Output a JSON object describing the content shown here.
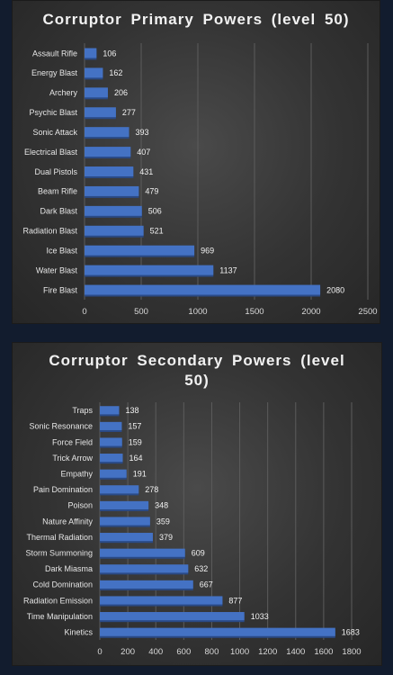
{
  "chart_data": [
    {
      "type": "bar",
      "orientation": "horizontal",
      "title": "Corruptor Primary Powers (level 50)",
      "categories": [
        "Assault Rifle",
        "Energy Blast",
        "Archery",
        "Psychic Blast",
        "Sonic Attack",
        "Electrical Blast",
        "Dual Pistols",
        "Beam Rifle",
        "Dark Blast",
        "Radiation Blast",
        "Ice Blast",
        "Water Blast",
        "Fire Blast"
      ],
      "values": [
        106,
        162,
        206,
        277,
        393,
        407,
        431,
        479,
        506,
        521,
        969,
        1137,
        2080
      ],
      "xlim": [
        0,
        2500
      ],
      "xticks": [
        0,
        500,
        1000,
        1500,
        2000,
        2500
      ],
      "grid": true,
      "bar_color": "#4472c4"
    },
    {
      "type": "bar",
      "orientation": "horizontal",
      "title": "Corruptor Secondary Powers (level 50)",
      "categories": [
        "Traps",
        "Sonic Resonance",
        "Force Field",
        "Trick Arrow",
        "Empathy",
        "Pain Domination",
        "Poison",
        "Nature Affinity",
        "Thermal Radiation",
        "Storm Summoning",
        "Dark Miasma",
        "Cold Domination",
        "Radiation Emission",
        "Time Manipulation",
        "Kinetics"
      ],
      "values": [
        138,
        157,
        159,
        164,
        191,
        278,
        348,
        359,
        379,
        609,
        632,
        667,
        877,
        1033,
        1683
      ],
      "xlim": [
        0,
        1800
      ],
      "xticks": [
        0,
        200,
        400,
        600,
        800,
        1000,
        1200,
        1400,
        1600,
        1800
      ],
      "grid": true,
      "bar_color": "#4472c4"
    }
  ]
}
